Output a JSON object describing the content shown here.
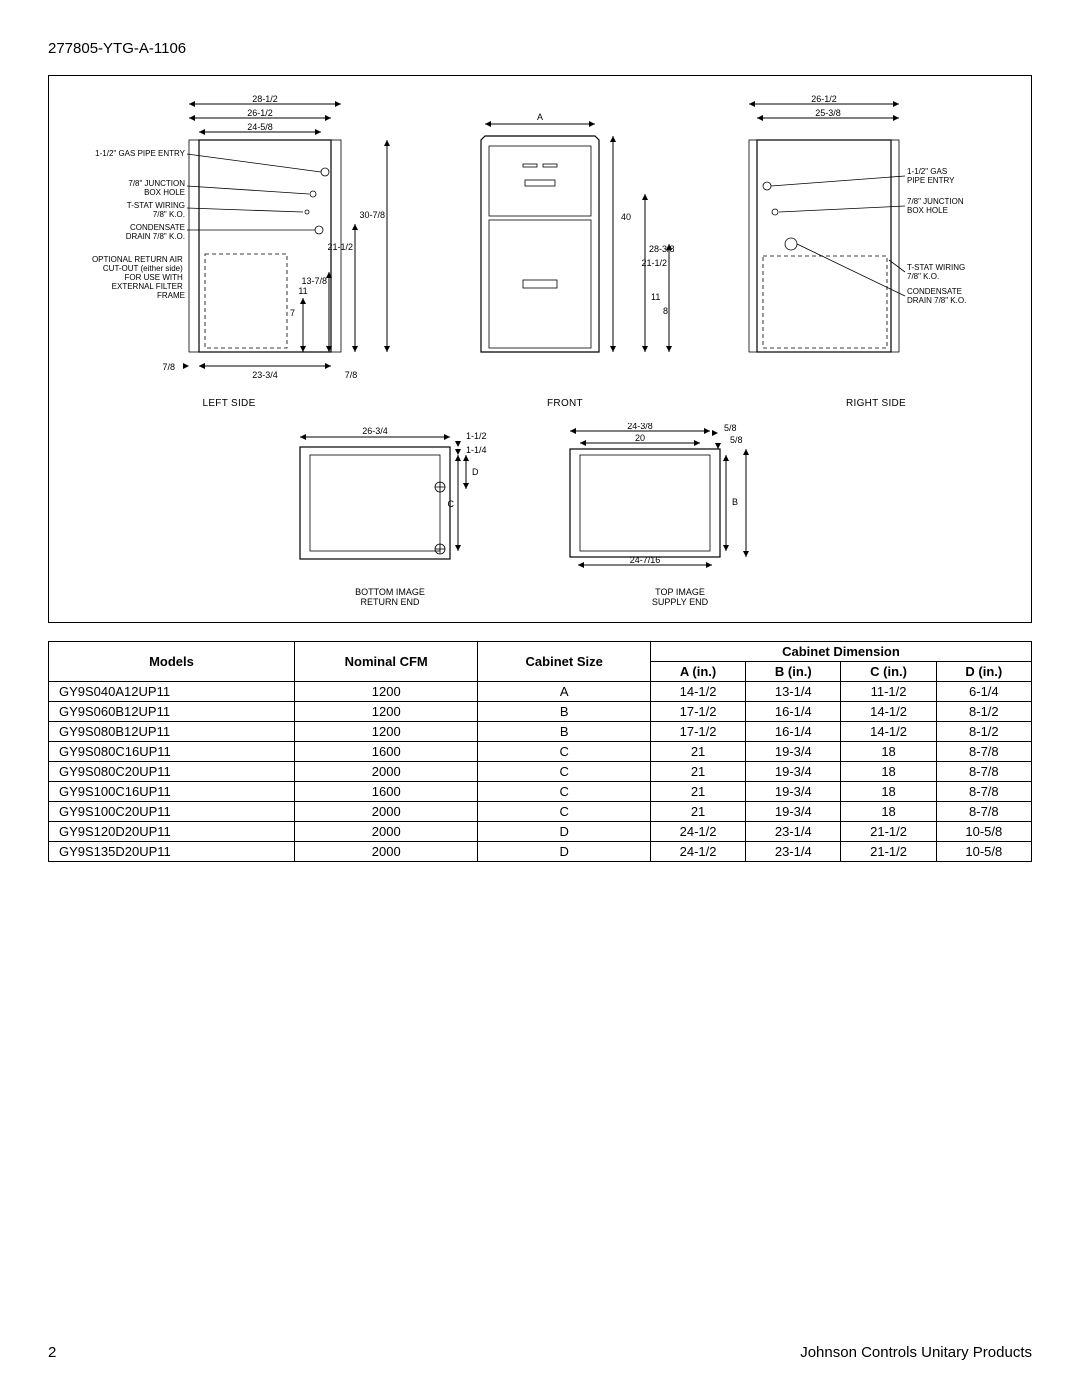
{
  "doc_id": "277805-YTG-A-1106",
  "page_number": "2",
  "footer_right": "Johnson Controls Unitary Products",
  "diagram": {
    "left_side": {
      "label": "LEFT SIDE",
      "top_dims": [
        "28-1/2",
        "26-1/2",
        "24-5/8"
      ],
      "callouts": [
        "1-1/2\" GAS PIPE ENTRY",
        "7/8\" JUNCTION BOX HOLE",
        "T-STAT WIRING 7/8\" K.O.",
        "CONDENSATE DRAIN 7/8\" K.O.",
        "OPTIONAL RETURN AIR CUT-OUT (either side) FOR USE WITH EXTERNAL FILTER FRAME"
      ],
      "right_vert": [
        "30-7/8",
        "21-1/2",
        "13-7/8"
      ],
      "misc": {
        "eleven": "11",
        "seven": "7",
        "seven_eighth": "7/8",
        "bottom_width": "23-3/4",
        "bottom_small": "7/8"
      }
    },
    "front": {
      "label": "FRONT",
      "top_dim": "A",
      "right_vert": [
        "40",
        "28-3/8",
        "21-1/2"
      ],
      "misc": {
        "eleven": "11",
        "eight": "8"
      }
    },
    "right_side": {
      "label": "RIGHT SIDE",
      "top_dims": [
        "26-1/2",
        "25-3/8"
      ],
      "callouts": [
        "1-1/2\" GAS PIPE ENTRY",
        "7/8\" JUNCTION BOX HOLE",
        "T-STAT WIRING 7/8\" K.O.",
        "CONDENSATE DRAIN 7/8\" K.O."
      ]
    },
    "bottom_image": {
      "label": "BOTTOM IMAGE",
      "label2": "RETURN END",
      "top_dim": "26-3/4",
      "right": {
        "one_half": "1-1/2",
        "one_quarter": "1-1/4",
        "D": "D",
        "C": "C"
      }
    },
    "top_image": {
      "label": "TOP IMAGE",
      "label2": "SUPPLY END",
      "top_dims": [
        "24-3/8",
        "20"
      ],
      "right": {
        "five_eighth_top": "5/8",
        "five_eighth_side": "5/8",
        "B": "B"
      },
      "bottom_dim": "24-7/16"
    }
  },
  "table": {
    "headers": {
      "models": "Models",
      "cfm": "Nominal CFM",
      "size": "Cabinet Size",
      "dim": "Cabinet Dimension",
      "a": "A (in.)",
      "b": "B (in.)",
      "c": "C (in.)",
      "d": "D (in.)"
    },
    "rows": [
      {
        "m": "GY9S040A12UP11",
        "cfm": "1200",
        "sz": "A",
        "a": "14-1/2",
        "b": "13-1/4",
        "c": "11-1/2",
        "d": "6-1/4"
      },
      {
        "m": "GY9S060B12UP11",
        "cfm": "1200",
        "sz": "B",
        "a": "17-1/2",
        "b": "16-1/4",
        "c": "14-1/2",
        "d": "8-1/2"
      },
      {
        "m": "GY9S080B12UP11",
        "cfm": "1200",
        "sz": "B",
        "a": "17-1/2",
        "b": "16-1/4",
        "c": "14-1/2",
        "d": "8-1/2"
      },
      {
        "m": "GY9S080C16UP11",
        "cfm": "1600",
        "sz": "C",
        "a": "21",
        "b": "19-3/4",
        "c": "18",
        "d": "8-7/8"
      },
      {
        "m": "GY9S080C20UP11",
        "cfm": "2000",
        "sz": "C",
        "a": "21",
        "b": "19-3/4",
        "c": "18",
        "d": "8-7/8"
      },
      {
        "m": "GY9S100C16UP11",
        "cfm": "1600",
        "sz": "C",
        "a": "21",
        "b": "19-3/4",
        "c": "18",
        "d": "8-7/8"
      },
      {
        "m": "GY9S100C20UP11",
        "cfm": "2000",
        "sz": "C",
        "a": "21",
        "b": "19-3/4",
        "c": "18",
        "d": "8-7/8"
      },
      {
        "m": "GY9S120D20UP11",
        "cfm": "2000",
        "sz": "D",
        "a": "24-1/2",
        "b": "23-1/4",
        "c": "21-1/2",
        "d": "10-5/8"
      },
      {
        "m": "GY9S135D20UP11",
        "cfm": "2000",
        "sz": "D",
        "a": "24-1/2",
        "b": "23-1/4",
        "c": "21-1/2",
        "d": "10-5/8"
      }
    ]
  }
}
